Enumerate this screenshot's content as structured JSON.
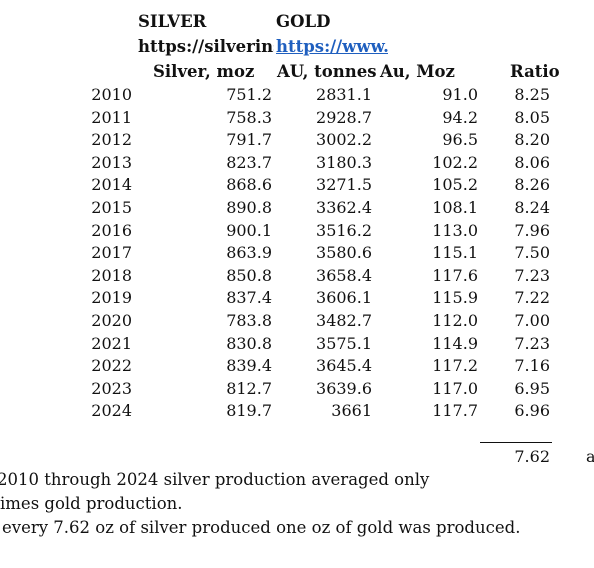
{
  "headers": {
    "silver_title": "SILVER",
    "gold_title": "GOLD",
    "silver_url": "https://silverinstitute.org",
    "gold_url": "https://www.gold.org",
    "col_silver": "Silver, moz",
    "col_au_tonnes": "AU, tonnes",
    "col_au_moz": "Au, Moz",
    "col_ratio": "Ratio"
  },
  "rows": [
    {
      "year": "2010",
      "silver": "751.2",
      "au_t": "2831.1",
      "au_moz": "91.0",
      "ratio": "8.25"
    },
    {
      "year": "2011",
      "silver": "758.3",
      "au_t": "2928.7",
      "au_moz": "94.2",
      "ratio": "8.05"
    },
    {
      "year": "2012",
      "silver": "791.7",
      "au_t": "3002.2",
      "au_moz": "96.5",
      "ratio": "8.20"
    },
    {
      "year": "2013",
      "silver": "823.7",
      "au_t": "3180.3",
      "au_moz": "102.2",
      "ratio": "8.06"
    },
    {
      "year": "2014",
      "silver": "868.6",
      "au_t": "3271.5",
      "au_moz": "105.2",
      "ratio": "8.26"
    },
    {
      "year": "2015",
      "silver": "890.8",
      "au_t": "3362.4",
      "au_moz": "108.1",
      "ratio": "8.24"
    },
    {
      "year": "2016",
      "silver": "900.1",
      "au_t": "3516.2",
      "au_moz": "113.0",
      "ratio": "7.96"
    },
    {
      "year": "2017",
      "silver": "863.9",
      "au_t": "3580.6",
      "au_moz": "115.1",
      "ratio": "7.50"
    },
    {
      "year": "2018",
      "silver": "850.8",
      "au_t": "3658.4",
      "au_moz": "117.6",
      "ratio": "7.23"
    },
    {
      "year": "2019",
      "silver": "837.4",
      "au_t": "3606.1",
      "au_moz": "115.9",
      "ratio": "7.22"
    },
    {
      "year": "2020",
      "silver": "783.8",
      "au_t": "3482.7",
      "au_moz": "112.0",
      "ratio": "7.00"
    },
    {
      "year": "2021",
      "silver": "830.8",
      "au_t": "3575.1",
      "au_moz": "114.9",
      "ratio": "7.23"
    },
    {
      "year": "2022",
      "silver": "839.4",
      "au_t": "3645.4",
      "au_moz": "117.2",
      "ratio": "7.16"
    },
    {
      "year": "2023",
      "silver": "812.7",
      "au_t": "3639.6",
      "au_moz": "117.0",
      "ratio": "6.95"
    },
    {
      "year": "2024",
      "silver": "819.7",
      "au_t": "3661",
      "au_moz": "117.7",
      "ratio": "6.96"
    }
  ],
  "average": {
    "ratio": "7.62",
    "suffix": "a"
  },
  "notes": [
    "2010 through 2024 silver production averaged only",
    "imes gold production.",
    "every 7.62 oz of silver produced one oz of gold was produced."
  ]
}
